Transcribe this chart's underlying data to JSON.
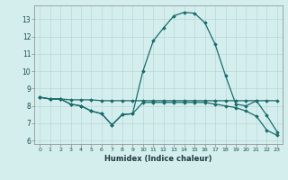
{
  "title": "",
  "xlabel": "Humidex (Indice chaleur)",
  "ylabel": "",
  "bg_color": "#d4eeee",
  "grid_color": "#b8d8d8",
  "line_color": "#1a6b6b",
  "x_ticks": [
    0,
    1,
    2,
    3,
    4,
    5,
    6,
    7,
    8,
    9,
    10,
    11,
    12,
    13,
    14,
    15,
    16,
    17,
    18,
    19,
    20,
    21,
    22,
    23
  ],
  "y_ticks": [
    6,
    7,
    8,
    9,
    10,
    11,
    12,
    13
  ],
  "ylim": [
    5.8,
    13.8
  ],
  "xlim": [
    -0.5,
    23.5
  ],
  "series": [
    [
      8.5,
      8.4,
      8.4,
      8.1,
      8.0,
      7.7,
      7.55,
      6.9,
      7.5,
      7.55,
      10.0,
      11.75,
      12.5,
      13.2,
      13.4,
      13.35,
      12.8,
      11.55,
      9.75,
      8.1,
      8.0,
      8.3,
      7.45,
      6.5
    ],
    [
      8.5,
      8.4,
      8.4,
      8.1,
      8.0,
      7.7,
      7.55,
      6.9,
      7.5,
      7.55,
      8.2,
      8.2,
      8.2,
      8.2,
      8.2,
      8.2,
      8.2,
      8.1,
      8.0,
      7.9,
      7.7,
      7.4,
      6.6,
      6.3
    ],
    [
      8.5,
      8.4,
      8.4,
      8.35,
      8.35,
      8.35,
      8.3,
      8.3,
      8.3,
      8.3,
      8.3,
      8.3,
      8.3,
      8.3,
      8.3,
      8.3,
      8.3,
      8.3,
      8.3,
      8.3,
      8.3,
      8.3,
      8.3,
      8.3
    ]
  ]
}
